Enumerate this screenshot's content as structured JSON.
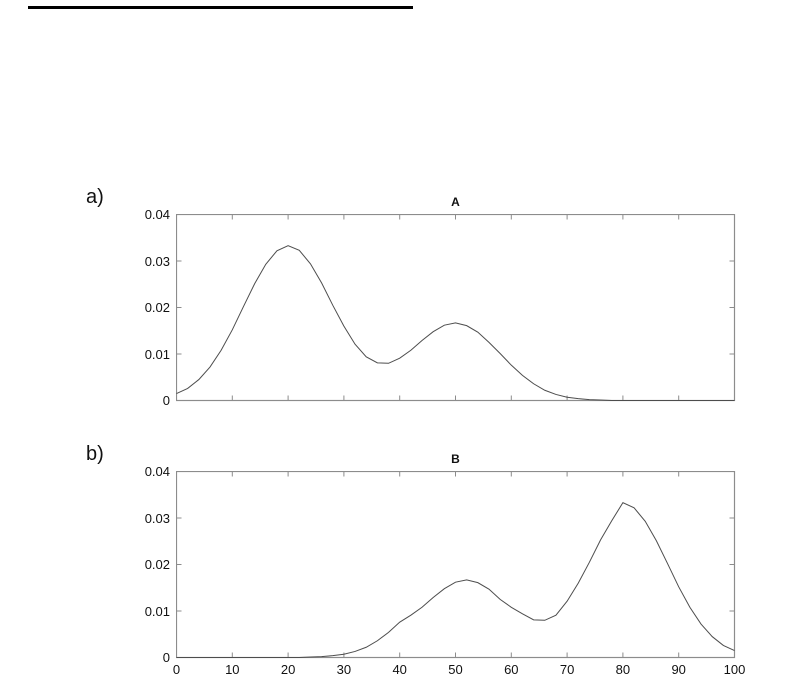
{
  "page": {
    "background": "#ffffff",
    "top_rule_color": "#000000"
  },
  "panels": [
    {
      "panel_label": "a)",
      "title": "A",
      "y_tick_labels": [
        "0.04",
        "0.03",
        "0.02",
        "0.01",
        "0"
      ],
      "x_tick_labels": []
    },
    {
      "panel_label": "b)",
      "title": "B",
      "y_tick_labels": [
        "0.04",
        "0.03",
        "0.02",
        "0.01",
        "0"
      ],
      "x_tick_labels": [
        "0",
        "10",
        "20",
        "30",
        "40",
        "50",
        "60",
        "70",
        "80",
        "90",
        "100"
      ]
    }
  ],
  "chart_data": [
    {
      "type": "line",
      "title": "A",
      "xlabel": "",
      "ylabel": "",
      "xlim": [
        0,
        100
      ],
      "ylim": [
        0,
        0.04
      ],
      "x_ticks": [
        0,
        10,
        20,
        30,
        40,
        50,
        60,
        70,
        80,
        90,
        100
      ],
      "y_ticks": [
        0,
        0.01,
        0.02,
        0.03,
        0.04
      ],
      "grid": false,
      "legend": null,
      "line_color": "#4d4d4d",
      "axis_color": "#8c8c8c",
      "description": "Bimodal density: large peak ~0.033 at x=20, valley ~0.008 at x=37, small peak ~0.017 at x=50, decays to 0 by x=78",
      "x": [
        0,
        2,
        4,
        6,
        8,
        10,
        12,
        14,
        16,
        18,
        20,
        22,
        24,
        26,
        28,
        30,
        32,
        34,
        36,
        38,
        40,
        42,
        44,
        46,
        48,
        50,
        52,
        54,
        56,
        58,
        60,
        62,
        64,
        66,
        68,
        70,
        72,
        74,
        76,
        78,
        80,
        82,
        84,
        86,
        88,
        90,
        92,
        94,
        96,
        98,
        100
      ],
      "y": [
        0.0015,
        0.0026,
        0.0045,
        0.0072,
        0.0108,
        0.0152,
        0.0202,
        0.0251,
        0.0293,
        0.0322,
        0.0333,
        0.0323,
        0.0294,
        0.0253,
        0.0205,
        0.016,
        0.0121,
        0.0094,
        0.0081,
        0.008,
        0.0091,
        0.0108,
        0.0129,
        0.0148,
        0.0162,
        0.0167,
        0.0161,
        0.0147,
        0.0125,
        0.0101,
        0.0076,
        0.0054,
        0.0036,
        0.0022,
        0.0013,
        0.0007,
        0.0004,
        0.0002,
        0.0001,
        0.0,
        0.0,
        0.0,
        0.0,
        0.0,
        0.0,
        0.0,
        0.0,
        0.0,
        0.0,
        0.0,
        0.0
      ]
    },
    {
      "type": "line",
      "title": "B",
      "xlabel": "",
      "ylabel": "",
      "xlim": [
        0,
        100
      ],
      "ylim": [
        0,
        0.04
      ],
      "x_ticks": [
        0,
        10,
        20,
        30,
        40,
        50,
        60,
        70,
        80,
        90,
        100
      ],
      "y_ticks": [
        0,
        0.01,
        0.02,
        0.03,
        0.04
      ],
      "grid": false,
      "legend": null,
      "line_color": "#4d4d4d",
      "axis_color": "#8c8c8c",
      "description": "Mirror of A: flat ~0 until x=25, small peak ~0.017 at x=50, valley ~0.008 at x=63, large peak ~0.033 at x=80, tail ~0.002 at x=100",
      "x": [
        0,
        2,
        4,
        6,
        8,
        10,
        12,
        14,
        16,
        18,
        20,
        22,
        24,
        26,
        28,
        30,
        32,
        34,
        36,
        38,
        40,
        42,
        44,
        46,
        48,
        50,
        52,
        54,
        56,
        58,
        60,
        62,
        64,
        66,
        68,
        70,
        72,
        74,
        76,
        78,
        80,
        82,
        84,
        86,
        88,
        90,
        92,
        94,
        96,
        98,
        100
      ],
      "y": [
        0.0,
        0.0,
        0.0,
        0.0,
        0.0,
        0.0,
        0.0,
        0.0,
        0.0,
        0.0,
        0.0,
        0.0,
        0.0001,
        0.0002,
        0.0004,
        0.0007,
        0.0013,
        0.0022,
        0.0036,
        0.0054,
        0.0076,
        0.0091,
        0.0108,
        0.0129,
        0.0148,
        0.0162,
        0.0167,
        0.0161,
        0.0147,
        0.0125,
        0.0108,
        0.0094,
        0.0081,
        0.008,
        0.0091,
        0.0121,
        0.016,
        0.0205,
        0.0253,
        0.0294,
        0.0333,
        0.0322,
        0.0293,
        0.0251,
        0.0202,
        0.0152,
        0.0108,
        0.0072,
        0.0045,
        0.0026,
        0.0015
      ]
    }
  ]
}
